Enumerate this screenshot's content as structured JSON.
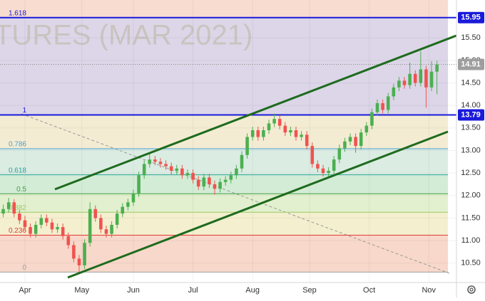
{
  "chart_data": {
    "type": "candlestick",
    "watermark": "TURES (MAR 2021)",
    "up_color": "#4caf50",
    "down_color": "#ef5350",
    "xlim": [
      -9.2,
      159.2
    ],
    "xticks": [
      {
        "value": 0,
        "label": "Apr"
      },
      {
        "value": 21,
        "label": "May"
      },
      {
        "value": 40,
        "label": "Jun"
      },
      {
        "value": 62,
        "label": "Jul"
      },
      {
        "value": 84,
        "label": "Aug"
      },
      {
        "value": 105,
        "label": "Sep"
      },
      {
        "value": 127,
        "label": "Oct"
      },
      {
        "value": 149,
        "label": "Nov"
      }
    ],
    "ylim": [
      10.07,
      16.34
    ],
    "yticks": [
      {
        "value": 10.5,
        "label": "10.50"
      },
      {
        "value": 11,
        "label": "11.00"
      },
      {
        "value": 11.5,
        "label": "11.50"
      },
      {
        "value": 12,
        "label": "12.00"
      },
      {
        "value": 12.5,
        "label": "12.50"
      },
      {
        "value": 13,
        "label": "13.00"
      },
      {
        "value": 13.5,
        "label": "13.50"
      },
      {
        "value": 14,
        "label": "14.00"
      },
      {
        "value": 14.5,
        "label": "14.50"
      },
      {
        "value": 15,
        "label": "15.00"
      },
      {
        "value": 15.5,
        "label": "15.50"
      }
    ],
    "upper_zone_color": "#f8dccf",
    "fib_levels": [
      {
        "ratio": 1.618,
        "price": 15.95,
        "color": "#1a1adb",
        "zone_color": "#dcd6e8"
      },
      {
        "ratio": 1,
        "price": 13.79,
        "color": "#1a1adb",
        "zone_color": "#f3ecd3"
      },
      {
        "ratio": 0.786,
        "price": 13.04,
        "color": "#4a9fd0",
        "zone_color": "#dbece3"
      },
      {
        "ratio": 0.618,
        "price": 12.46,
        "color": "#26a69a",
        "zone_color": "#d3ecd6"
      },
      {
        "ratio": 0.5,
        "price": 12.04,
        "color": "#43a047",
        "zone_color": "#e2f0cf"
      },
      {
        "ratio": 0.382,
        "price": 11.63,
        "color": "#9ccc65",
        "zone_color": "#f3efcf"
      },
      {
        "ratio": 0.236,
        "price": 11.12,
        "color": "#e53935",
        "zone_color": "#f8d8ca"
      },
      {
        "ratio": 0,
        "price": 10.3,
        "color": "#9e9e9e",
        "zone_color": "#ffffff"
      }
    ],
    "price_labels": [
      {
        "value": 15.95,
        "label": "15.95",
        "color": "#1a1adb"
      },
      {
        "value": 14.91,
        "label": "14.91",
        "color": "#9e9e9e"
      },
      {
        "value": 13.79,
        "label": "13.79",
        "color": "#1a1adb"
      }
    ],
    "x": [
      -8,
      -6,
      -4,
      -2,
      0,
      2,
      4,
      6,
      8,
      10,
      12,
      14,
      16,
      18,
      20,
      22,
      24,
      26,
      28,
      30,
      32,
      34,
      36,
      38,
      40,
      42,
      44,
      46,
      48,
      50,
      52,
      54,
      56,
      58,
      60,
      62,
      64,
      66,
      68,
      70,
      72,
      74,
      76,
      78,
      80,
      82,
      84,
      86,
      88,
      90,
      92,
      94,
      96,
      98,
      100,
      102,
      104,
      106,
      108,
      110,
      112,
      114,
      116,
      118,
      120,
      122,
      124,
      126,
      128,
      130,
      132,
      134,
      136,
      138,
      140,
      142,
      144,
      146,
      148,
      150,
      152
    ],
    "ohlc": [
      [
        11.6,
        11.8,
        11.52,
        11.7
      ],
      [
        11.7,
        11.95,
        11.62,
        11.85
      ],
      [
        11.85,
        11.92,
        11.52,
        11.6
      ],
      [
        11.6,
        11.68,
        11.37,
        11.45
      ],
      [
        11.45,
        11.55,
        11.22,
        11.3
      ],
      [
        11.3,
        11.38,
        11.07,
        11.15
      ],
      [
        11.15,
        11.43,
        11.07,
        11.35
      ],
      [
        11.35,
        11.58,
        11.27,
        11.5
      ],
      [
        11.5,
        11.58,
        11.32,
        11.4
      ],
      [
        11.4,
        11.48,
        11.17,
        11.25
      ],
      [
        11.25,
        11.38,
        11.17,
        11.3
      ],
      [
        11.3,
        11.38,
        11.02,
        11.1
      ],
      [
        11.1,
        11.18,
        10.82,
        10.9
      ],
      [
        10.9,
        10.98,
        10.52,
        10.6
      ],
      [
        10.6,
        10.68,
        10.28,
        10.45
      ],
      [
        10.45,
        11.03,
        10.37,
        10.95
      ],
      [
        10.95,
        11.85,
        10.87,
        11.7
      ],
      [
        11.7,
        11.78,
        11.42,
        11.5
      ],
      [
        11.5,
        11.58,
        11.17,
        11.25
      ],
      [
        11.25,
        11.33,
        11.07,
        11.15
      ],
      [
        11.15,
        11.43,
        11.07,
        11.35
      ],
      [
        11.35,
        11.68,
        11.27,
        11.6
      ],
      [
        11.6,
        11.83,
        11.52,
        11.75
      ],
      [
        11.75,
        11.93,
        11.67,
        11.85
      ],
      [
        11.85,
        12.13,
        11.77,
        12.05
      ],
      [
        12.05,
        12.53,
        11.97,
        12.45
      ],
      [
        12.45,
        12.78,
        12.37,
        12.7
      ],
      [
        12.7,
        12.95,
        12.62,
        12.8
      ],
      [
        12.8,
        12.88,
        12.67,
        12.75
      ],
      [
        12.75,
        12.83,
        12.62,
        12.7
      ],
      [
        12.7,
        12.78,
        12.57,
        12.65
      ],
      [
        12.65,
        12.73,
        12.47,
        12.55
      ],
      [
        12.55,
        12.68,
        12.47,
        12.6
      ],
      [
        12.6,
        12.68,
        12.37,
        12.45
      ],
      [
        12.45,
        12.58,
        12.37,
        12.5
      ],
      [
        12.5,
        12.58,
        12.27,
        12.35
      ],
      [
        12.35,
        12.43,
        12.12,
        12.2
      ],
      [
        12.2,
        12.48,
        12.12,
        12.4
      ],
      [
        12.4,
        12.48,
        12.17,
        12.25
      ],
      [
        12.25,
        12.33,
        12.02,
        12.15
      ],
      [
        12.15,
        12.38,
        12.07,
        12.3
      ],
      [
        12.3,
        12.43,
        12.22,
        12.35
      ],
      [
        12.35,
        12.53,
        12.27,
        12.45
      ],
      [
        12.45,
        12.68,
        12.37,
        12.6
      ],
      [
        12.6,
        12.98,
        12.52,
        12.9
      ],
      [
        12.9,
        13.38,
        12.82,
        13.3
      ],
      [
        13.3,
        13.53,
        13.22,
        13.45
      ],
      [
        13.45,
        13.53,
        13.22,
        13.3
      ],
      [
        13.3,
        13.53,
        13.22,
        13.45
      ],
      [
        13.45,
        13.68,
        13.37,
        13.6
      ],
      [
        13.6,
        13.82,
        13.52,
        13.7
      ],
      [
        13.7,
        13.78,
        13.47,
        13.55
      ],
      [
        13.55,
        13.63,
        13.32,
        13.4
      ],
      [
        13.4,
        13.53,
        13.32,
        13.45
      ],
      [
        13.45,
        13.53,
        13.22,
        13.3
      ],
      [
        13.3,
        13.43,
        13.22,
        13.35
      ],
      [
        13.35,
        13.43,
        13.02,
        13.1
      ],
      [
        13.1,
        13.18,
        12.62,
        12.7
      ],
      [
        12.7,
        12.78,
        12.52,
        12.6
      ],
      [
        12.6,
        12.68,
        12.42,
        12.5
      ],
      [
        12.5,
        12.63,
        12.42,
        12.55
      ],
      [
        12.55,
        12.88,
        12.47,
        12.8
      ],
      [
        12.8,
        13.13,
        12.72,
        13.05
      ],
      [
        13.05,
        13.28,
        12.97,
        13.2
      ],
      [
        13.2,
        13.38,
        13.12,
        13.3
      ],
      [
        13.3,
        13.38,
        12.95,
        13.1
      ],
      [
        13.1,
        13.48,
        13.02,
        13.4
      ],
      [
        13.4,
        13.63,
        13.32,
        13.55
      ],
      [
        13.55,
        13.93,
        13.47,
        13.85
      ],
      [
        13.85,
        14.13,
        13.77,
        14.05
      ],
      [
        14.05,
        14.13,
        13.82,
        13.9
      ],
      [
        13.9,
        14.28,
        13.82,
        14.2
      ],
      [
        14.2,
        14.48,
        14.12,
        14.4
      ],
      [
        14.4,
        14.63,
        14.32,
        14.55
      ],
      [
        14.55,
        14.63,
        14.37,
        14.45
      ],
      [
        14.45,
        14.95,
        14.37,
        14.7
      ],
      [
        14.7,
        14.78,
        14.42,
        14.5
      ],
      [
        14.5,
        15.2,
        14.42,
        14.8
      ],
      [
        14.8,
        14.88,
        13.95,
        14.4
      ],
      [
        14.4,
        14.98,
        14.32,
        14.75
      ],
      [
        14.75,
        14.99,
        14.25,
        14.91
      ]
    ]
  }
}
